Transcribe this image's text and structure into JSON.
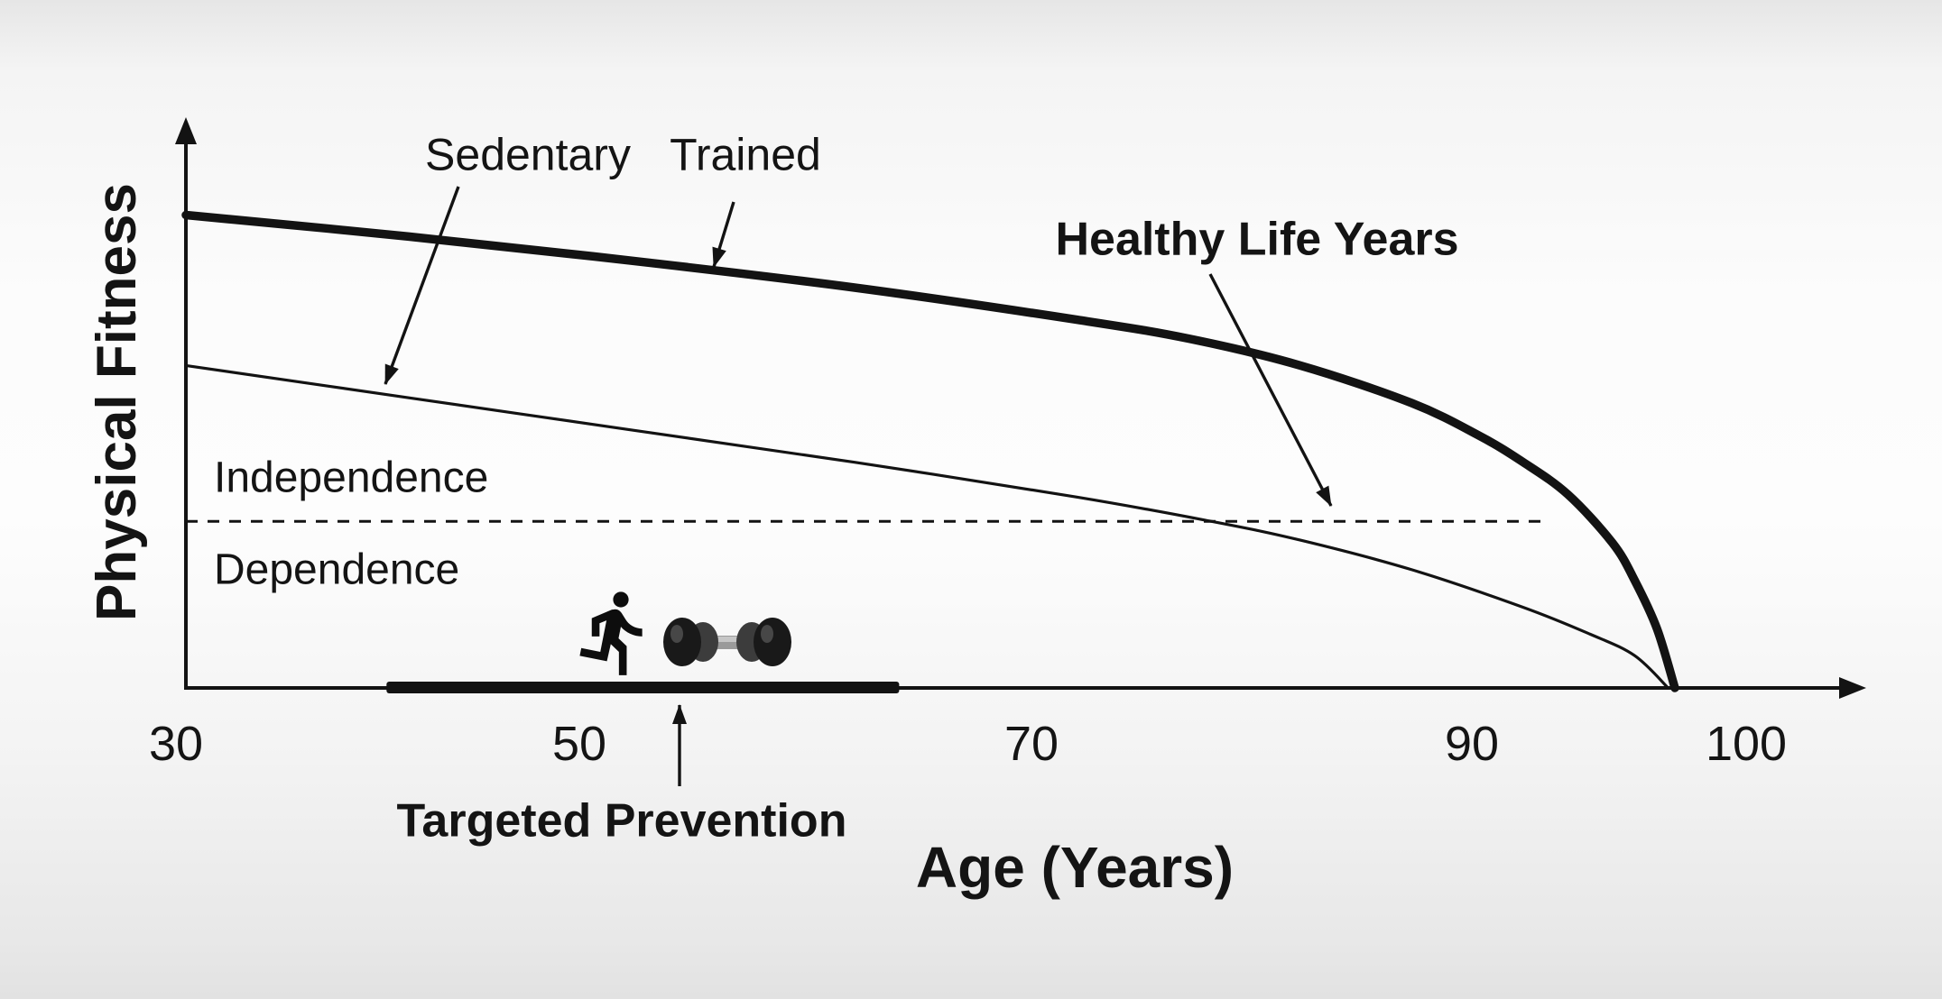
{
  "chart_data": {
    "type": "line",
    "title": "",
    "xlabel": "Age (Years)",
    "ylabel": "Physical Fitness",
    "x_tick_values": [
      30,
      50,
      70,
      90,
      100
    ],
    "x_tick_labels": [
      "30",
      "50",
      "70",
      "90",
      "100"
    ],
    "xlim": [
      30,
      105
    ],
    "ylim": [
      0,
      100
    ],
    "grid": false,
    "legend": "inline-annotations",
    "series": [
      {
        "name": "Trained",
        "line_weight": "thick",
        "color": "#131313",
        "x": [
          30,
          40,
          50,
          60,
          70,
          75,
          80,
          85,
          88,
          90,
          92,
          94,
          95,
          96,
          96.8
        ],
        "y": [
          88,
          84,
          79.5,
          74.5,
          68.5,
          65,
          60,
          53,
          47,
          42,
          36,
          27,
          20,
          11,
          0
        ]
      },
      {
        "name": "Sedentary",
        "line_weight": "thin",
        "color": "#131313",
        "x": [
          30,
          40,
          50,
          60,
          70,
          76,
          80,
          85,
          90,
          93,
          95,
          96.5
        ],
        "y": [
          60,
          54,
          48,
          42,
          35.5,
          31,
          27.5,
          22,
          15,
          10,
          6,
          0
        ]
      }
    ],
    "threshold_line": {
      "style": "dashed",
      "fitness_level": 31,
      "age_start": 30,
      "age_end": 91,
      "label_above": "Independence",
      "label_below": "Dependence"
    },
    "annotations": {
      "sedentary": {
        "text": "Sedentary",
        "bold": false,
        "points_to": "Sedentary curve"
      },
      "trained": {
        "text": "Trained",
        "bold": false,
        "points_to": "Trained curve"
      },
      "healthy_life_years": {
        "text": "Healthy Life Years",
        "bold": true,
        "points_to": "independence threshold dashed line"
      },
      "targeted_prevention": {
        "text": "Targeted Prevention",
        "bold": true,
        "points_to": "intervention bar on x-axis"
      }
    },
    "intervention_bar": {
      "age_start": 39,
      "age_end": 62
    },
    "icons": [
      {
        "name": "runner-icon",
        "meaning": "running person silhouette"
      },
      {
        "name": "dumbbell-icon",
        "meaning": "dumbbell weight"
      }
    ],
    "colors": {
      "ink": "#131313",
      "background": "#f5f5f5"
    }
  }
}
